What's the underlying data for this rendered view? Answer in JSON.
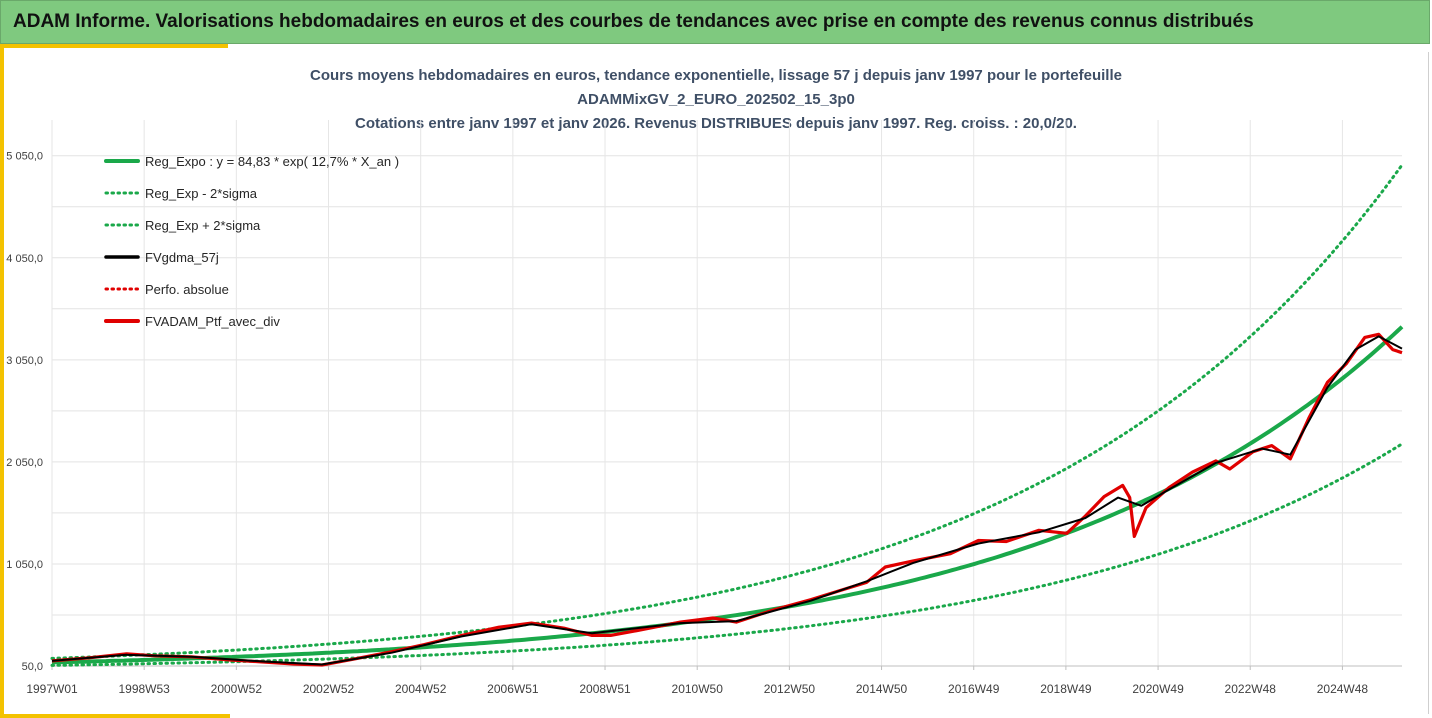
{
  "header": {
    "title": "ADAM Informe. Valorisations hebdomadaires en euros et des courbes de tendances avec prise en compte des revenus connus distribués"
  },
  "chart_data": {
    "type": "line",
    "title_lines": [
      "Cours moyens hebdomadaires  en euros, tendance exponentielle, lissage 57 j depuis janv 1997 pour le portefeuille",
      "ADAMMixGV_2_EURO_202502_15_3p0",
      "Cotations entre janv 1997 et janv 2026. Revenus DISTRIBUES depuis janv 1997. Reg. croiss. : 20,0/20."
    ],
    "x_range_years": [
      1997.0,
      2026.0
    ],
    "x_tick_labels": [
      "1997W01",
      "1998W53",
      "2000W52",
      "2002W52",
      "2004W52",
      "2006W51",
      "2008W51",
      "2010W50",
      "2012W50",
      "2014W50",
      "2016W49",
      "2018W49",
      "2020W49",
      "2022W48",
      "2024W48"
    ],
    "x_tick_years": [
      1997.0,
      1998.98,
      2000.96,
      2002.94,
      2004.92,
      2006.9,
      2008.88,
      2010.86,
      2012.84,
      2014.82,
      2016.8,
      2018.78,
      2020.76,
      2022.74,
      2024.72
    ],
    "y_ticks": [
      50,
      1050,
      2050,
      3050,
      4050,
      5050
    ],
    "y_tick_labels": [
      "50,0",
      "1 050,0",
      "2 050,0",
      "3 050,0",
      "4 050,0",
      "5 050,0"
    ],
    "ylim": [
      50,
      5400
    ],
    "grid": true,
    "legend_position": "top-left",
    "regression": {
      "a": 84.83,
      "rate": 0.127,
      "start_year": 1997.0,
      "lower_factor": 0.66,
      "upper_factor": 1.47
    },
    "series": [
      {
        "name": "Reg_Expo : y = 84,83 * exp( 12,7% *  X_an )",
        "kind": "trend",
        "color": "#1aa84a"
      },
      {
        "name": "Reg_Exp - 2*sigma",
        "kind": "lower",
        "color": "#1aa84a"
      },
      {
        "name": "Reg_Exp + 2*sigma",
        "kind": "upper",
        "color": "#1aa84a"
      },
      {
        "name": "FVgdma_57j",
        "kind": "smooth",
        "color": "#000000"
      },
      {
        "name": "Perfo. absolue",
        "kind": "perfo",
        "color": "#e00000"
      },
      {
        "name": "FVADAM_Ptf_avec_div",
        "kind": "portfolio",
        "color": "#e00000"
      }
    ],
    "portfolio_points": {
      "x": [
        1997.0,
        1997.8,
        1998.6,
        1999.2,
        2000.0,
        2000.8,
        2001.5,
        2002.2,
        2002.8,
        2003.5,
        2004.3,
        2005.0,
        2005.8,
        2006.6,
        2007.3,
        2008.0,
        2008.6,
        2009.0,
        2009.6,
        2010.5,
        2011.2,
        2011.7,
        2012.5,
        2013.3,
        2014.0,
        2014.5,
        2014.9,
        2015.5,
        2016.3,
        2016.9,
        2017.5,
        2018.2,
        2018.8,
        2019.2,
        2019.6,
        2020.0,
        2020.15,
        2020.25,
        2020.5,
        2021.0,
        2021.5,
        2022.0,
        2022.3,
        2022.8,
        2023.2,
        2023.6,
        2024.0,
        2024.4,
        2024.8,
        2025.2,
        2025.5,
        2025.8,
        2026.0
      ],
      "y": [
        100,
        130,
        170,
        150,
        140,
        110,
        90,
        70,
        60,
        120,
        190,
        260,
        350,
        430,
        470,
        420,
        350,
        350,
        400,
        480,
        520,
        480,
        600,
        700,
        800,
        870,
        1020,
        1080,
        1150,
        1280,
        1270,
        1380,
        1350,
        1520,
        1710,
        1820,
        1700,
        1320,
        1600,
        1800,
        1950,
        2060,
        1980,
        2150,
        2210,
        2080,
        2480,
        2830,
        3010,
        3270,
        3300,
        3150,
        3120
      ]
    },
    "smooth_points": {
      "x": [
        1997.0,
        1998.6,
        2000.0,
        2001.5,
        2002.8,
        2004.3,
        2005.8,
        2007.3,
        2008.6,
        2010.5,
        2011.7,
        2013.3,
        2014.5,
        2015.5,
        2016.9,
        2018.2,
        2019.2,
        2019.9,
        2020.4,
        2021.0,
        2022.0,
        2023.0,
        2023.6,
        2024.4,
        2025.0,
        2025.5,
        2026.0
      ],
      "y": [
        100,
        160,
        140,
        95,
        65,
        180,
        340,
        460,
        370,
        470,
        490,
        690,
        880,
        1060,
        1250,
        1360,
        1500,
        1700,
        1620,
        1780,
        2040,
        2180,
        2120,
        2780,
        3150,
        3280,
        3160
      ]
    }
  }
}
